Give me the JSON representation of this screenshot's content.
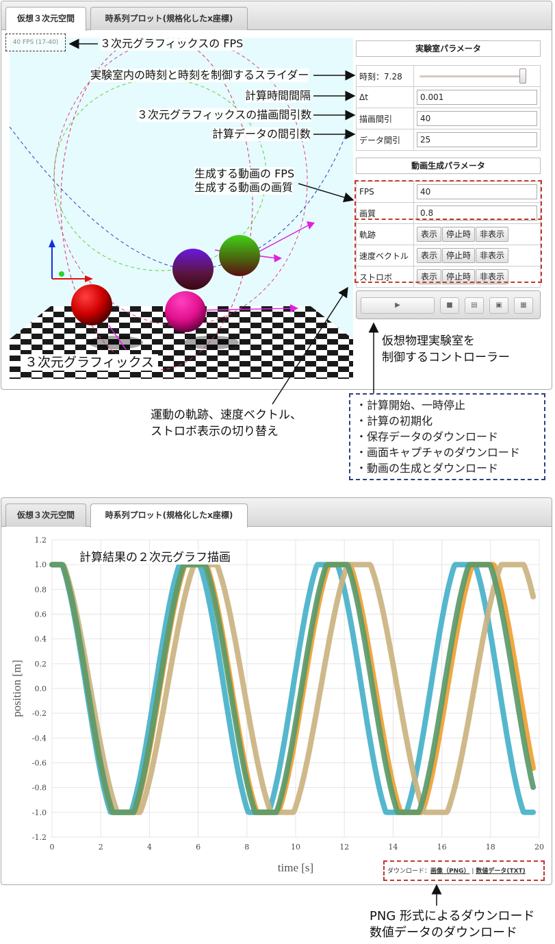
{
  "panel1": {
    "tabs": [
      {
        "label": "仮想３次元空間"
      },
      {
        "label": "時系列プロット(規格化したx座標)"
      }
    ],
    "fps_readout": "40 FPS (17-40)",
    "scene_label": "３次元グラフィックス",
    "lab_params": {
      "header": "実験室パラメータ",
      "time_label": "時刻：7.28",
      "time_value": 7.28,
      "dt_label": "Δt",
      "dt_value": "0.001",
      "skip_label": "描画間引",
      "skip_value": "40",
      "data_skip_label": "データ間引",
      "data_skip_value": "25"
    },
    "video_params": {
      "header": "動画生成パラメータ",
      "fps_label": "FPS",
      "fps_value": "40",
      "quality_label": "画質",
      "quality_value": "0.8",
      "rows": [
        {
          "label": "軌跡",
          "buttons": [
            "表示",
            "停止時",
            "非表示"
          ]
        },
        {
          "label": "速度ベクトル",
          "buttons": [
            "表示",
            "停止時",
            "非表示"
          ]
        },
        {
          "label": "ストロボ",
          "buttons": [
            "表示",
            "停止時",
            "非表示"
          ]
        }
      ]
    },
    "player": {
      "play_icon": "play-icon",
      "stop_icon": "stop-icon",
      "save_icon": "save-icon",
      "image_icon": "image-icon",
      "film_icon": "film-icon"
    }
  },
  "annotations": {
    "fps": "３次元グラフィックスの FPS",
    "slider": "実験室内の時刻と時刻を制御するスライダー",
    "dt": "計算時間間隔",
    "skip": "３次元グラフィックスの描画間引数",
    "data_skip": "計算データの間引数",
    "video_fps": "生成する動画の FPS",
    "video_quality": "生成する動画の画質",
    "controller": "仮想物理実験室を\n制御するコントローラー",
    "toggle": "運動の軌跡、速度ベクトル、\nストロボ表示の切り替え",
    "bullets": [
      "・計算開始、一時停止",
      "・計算の初期化",
      "・保存データのダウンロード",
      "・画面キャプチャのダウンロード",
      "・動画の生成とダウンロード"
    ],
    "graph": "計算結果の２次元グラフ描画",
    "download": "PNG 形式によるダウンロード\n数値データのダウンロード"
  },
  "panel2": {
    "tabs": [
      {
        "label": "仮想３次元空間"
      },
      {
        "label": "時系列プロット(規格化したx座標)"
      }
    ],
    "download_prefix": "ダウンロード：",
    "download_png": "画像（PNG）",
    "download_sep": "|",
    "download_txt": "数値データ(TXT)"
  },
  "colors": {
    "sky": "#e6fbfd",
    "red_ball": "#dd0000",
    "magenta_ball": "#ee1188",
    "purple_ball": "#5a1fa8",
    "green_ball": "#3aaa20",
    "series_blue": "#46b1c9",
    "series_orange": "#f0a030",
    "series_tan": "#cbb380",
    "series_green": "#5a9a6a"
  },
  "chart_data": {
    "type": "line",
    "title": "",
    "xlabel": "time [s]",
    "ylabel": "position [m]",
    "xlim": [
      0,
      20
    ],
    "ylim": [
      -1.2,
      1.2
    ],
    "xticks": [
      0,
      2,
      4,
      6,
      8,
      10,
      12,
      14,
      16,
      18,
      20
    ],
    "yticks": [
      1.2,
      1.0,
      0.8,
      0.6,
      0.4,
      0.2,
      0.0,
      -0.2,
      -0.4,
      -0.6,
      -0.8,
      -1.0,
      -1.2
    ],
    "grid": true,
    "series": [
      {
        "color": "#46b1c9",
        "period": 5.65,
        "x_end": 19.8
      },
      {
        "color": "#f0a030",
        "period": 5.9,
        "x_end": 19.8
      },
      {
        "color": "#cbb380",
        "period": 6.3,
        "x_end": 19.8
      },
      {
        "color": "#5a9a6a",
        "period": 5.85,
        "x_end": 19.8
      }
    ]
  }
}
